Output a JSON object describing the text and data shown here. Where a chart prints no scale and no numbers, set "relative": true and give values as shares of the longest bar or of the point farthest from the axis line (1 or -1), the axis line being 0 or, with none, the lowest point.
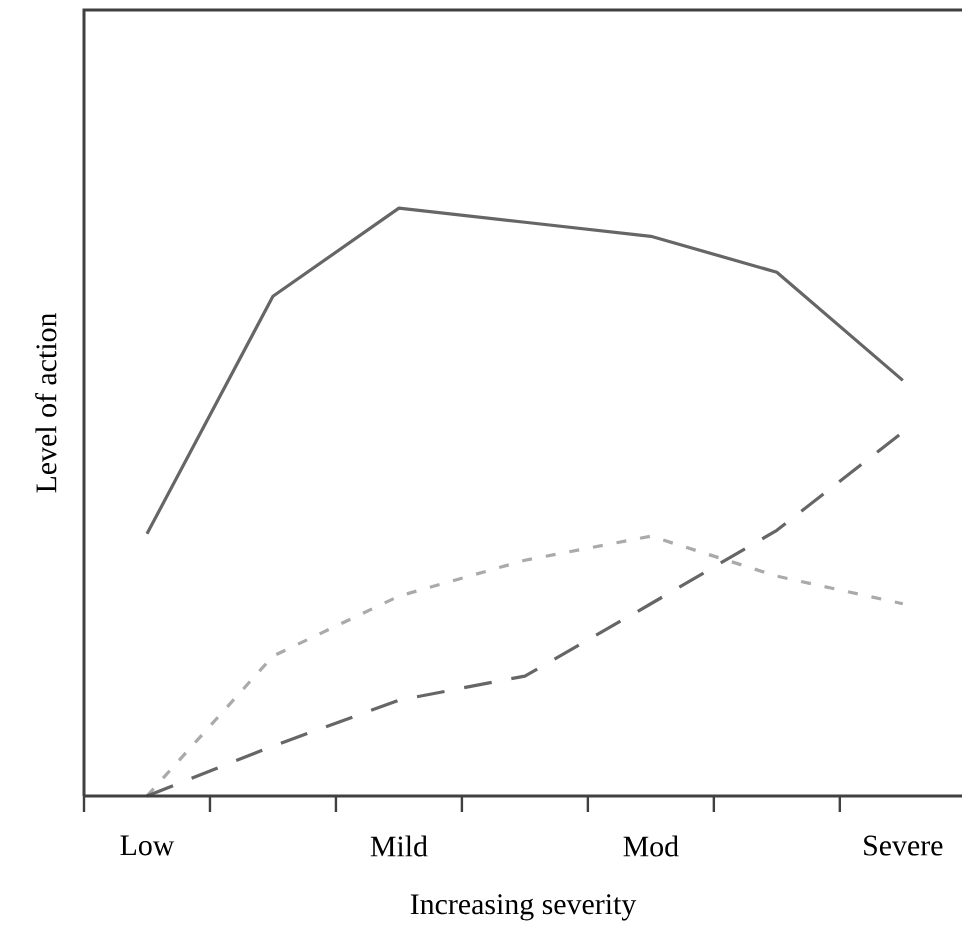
{
  "chart_data": {
    "type": "line",
    "relative": true,
    "xlabel": "Increasing severity",
    "ylabel": "Level of action",
    "categories": [
      "Low",
      null,
      "Mild",
      null,
      "Mod",
      null,
      "Severe"
    ],
    "series": [
      {
        "color": "#666666",
        "line_style": "solid",
        "values": [
          0.446,
          0.85,
          1.0,
          0.976,
          0.952,
          0.891,
          0.707
        ]
      },
      {
        "color": "#aaaaaa",
        "line_style": "dotted",
        "values": [
          0,
          0.238,
          0.34,
          0.401,
          0.442,
          0.374,
          0.327
        ]
      },
      {
        "color": "#666666",
        "line_style": "dashed",
        "values": [
          0,
          0.085,
          0.163,
          0.204,
          0.327,
          0.452,
          0.619
        ]
      }
    ],
    "grid": false
  }
}
